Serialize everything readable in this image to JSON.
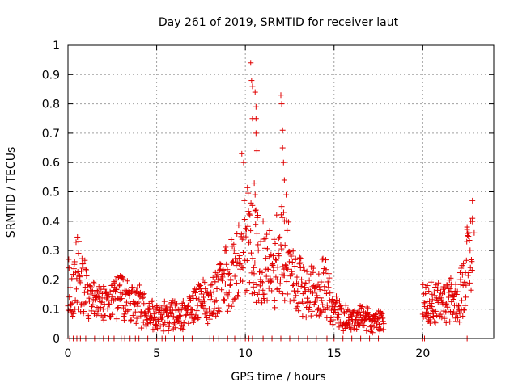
{
  "chart_data": {
    "type": "scatter",
    "title": "Day 261 of 2019, SRMTID for receiver laut",
    "xlabel": "GPS time / hours",
    "ylabel": "SRMTID / TECUs",
    "xlim": [
      0,
      24
    ],
    "ylim": [
      0,
      1
    ],
    "xticks": [
      0,
      5,
      10,
      15,
      20
    ],
    "yticks": [
      0,
      0.1,
      0.2,
      0.3,
      0.4,
      0.5,
      0.6,
      0.7,
      0.8,
      0.9,
      1
    ],
    "xtick_labels": [
      "0",
      "5",
      "10",
      "15",
      "20"
    ],
    "ytick_labels": [
      "0",
      "0.1",
      "0.2",
      "0.3",
      "0.4",
      "0.5",
      "0.6",
      "0.7",
      "0.8",
      "0.9",
      "1"
    ],
    "grid": true,
    "marker": "+",
    "marker_color": "#e00000",
    "series": [
      {
        "name": "SRMTID",
        "profile": [
          [
            0.0,
            0.19
          ],
          [
            0.3,
            0.16
          ],
          [
            0.5,
            0.24
          ],
          [
            0.8,
            0.18
          ],
          [
            1.2,
            0.14
          ],
          [
            1.6,
            0.13
          ],
          [
            2.0,
            0.12
          ],
          [
            2.4,
            0.11
          ],
          [
            2.8,
            0.15
          ],
          [
            3.2,
            0.13
          ],
          [
            3.6,
            0.12
          ],
          [
            4.0,
            0.11
          ],
          [
            4.5,
            0.09
          ],
          [
            5.0,
            0.08
          ],
          [
            5.5,
            0.08
          ],
          [
            6.0,
            0.09
          ],
          [
            6.5,
            0.08
          ],
          [
            7.0,
            0.1
          ],
          [
            7.5,
            0.13
          ],
          [
            8.0,
            0.12
          ],
          [
            8.5,
            0.17
          ],
          [
            9.0,
            0.2
          ],
          [
            9.5,
            0.24
          ],
          [
            9.8,
            0.3
          ],
          [
            10.2,
            0.34
          ],
          [
            10.5,
            0.3
          ],
          [
            11.0,
            0.22
          ],
          [
            11.5,
            0.25
          ],
          [
            12.0,
            0.28
          ],
          [
            12.3,
            0.3
          ],
          [
            12.6,
            0.22
          ],
          [
            13.0,
            0.18
          ],
          [
            13.5,
            0.15
          ],
          [
            14.0,
            0.16
          ],
          [
            14.5,
            0.18
          ],
          [
            15.0,
            0.1
          ],
          [
            15.5,
            0.07
          ],
          [
            16.0,
            0.06
          ],
          [
            16.5,
            0.07
          ],
          [
            17.0,
            0.06
          ],
          [
            17.5,
            0.06
          ],
          [
            17.8,
            0.05
          ]
        ],
        "profile_late": [
          [
            20.0,
            0.13
          ],
          [
            20.5,
            0.12
          ],
          [
            21.0,
            0.12
          ],
          [
            21.5,
            0.13
          ],
          [
            22.0,
            0.12
          ],
          [
            22.3,
            0.2
          ],
          [
            22.6,
            0.28
          ],
          [
            22.8,
            0.3
          ]
        ],
        "coverage_hours": [
          [
            0.0,
            17.8
          ],
          [
            20.0,
            22.8
          ]
        ],
        "spikes": [
          [
            9.8,
            0.63
          ],
          [
            9.9,
            0.6
          ],
          [
            10.3,
            0.94
          ],
          [
            10.35,
            0.88
          ],
          [
            10.4,
            0.86
          ],
          [
            10.4,
            0.75
          ],
          [
            10.55,
            0.84
          ],
          [
            10.6,
            0.79
          ],
          [
            10.6,
            0.75
          ],
          [
            10.6,
            0.7
          ],
          [
            10.65,
            0.64
          ],
          [
            10.5,
            0.53
          ],
          [
            10.55,
            0.49
          ],
          [
            10.7,
            0.42
          ],
          [
            11.0,
            0.4
          ],
          [
            12.0,
            0.83
          ],
          [
            12.05,
            0.8
          ],
          [
            12.1,
            0.71
          ],
          [
            12.1,
            0.65
          ],
          [
            12.15,
            0.6
          ],
          [
            12.2,
            0.54
          ],
          [
            12.3,
            0.49
          ],
          [
            12.05,
            0.45
          ],
          [
            12.2,
            0.4
          ],
          [
            22.5,
            0.38
          ],
          [
            22.8,
            0.47
          ],
          [
            22.8,
            0.41
          ],
          [
            22.9,
            0.36
          ]
        ],
        "zeros": [
          0.1,
          0.3,
          0.5,
          0.7,
          1.0,
          1.3,
          1.5,
          1.8,
          2.0,
          2.3,
          2.6,
          3.0,
          3.2,
          3.5,
          3.8,
          4.0,
          4.5,
          5.0,
          5.3,
          5.5,
          6.0,
          6.5,
          7.0,
          8.0,
          8.2,
          8.5,
          9.0,
          9.4,
          9.7,
          10.0,
          10.2,
          10.4,
          11.0,
          11.5,
          12.0,
          12.5,
          13.0,
          13.5,
          14.0,
          14.6,
          15.0,
          15.5,
          16.0,
          16.5,
          17.0,
          17.5,
          20.0,
          20.1,
          22.5
        ]
      }
    ]
  }
}
